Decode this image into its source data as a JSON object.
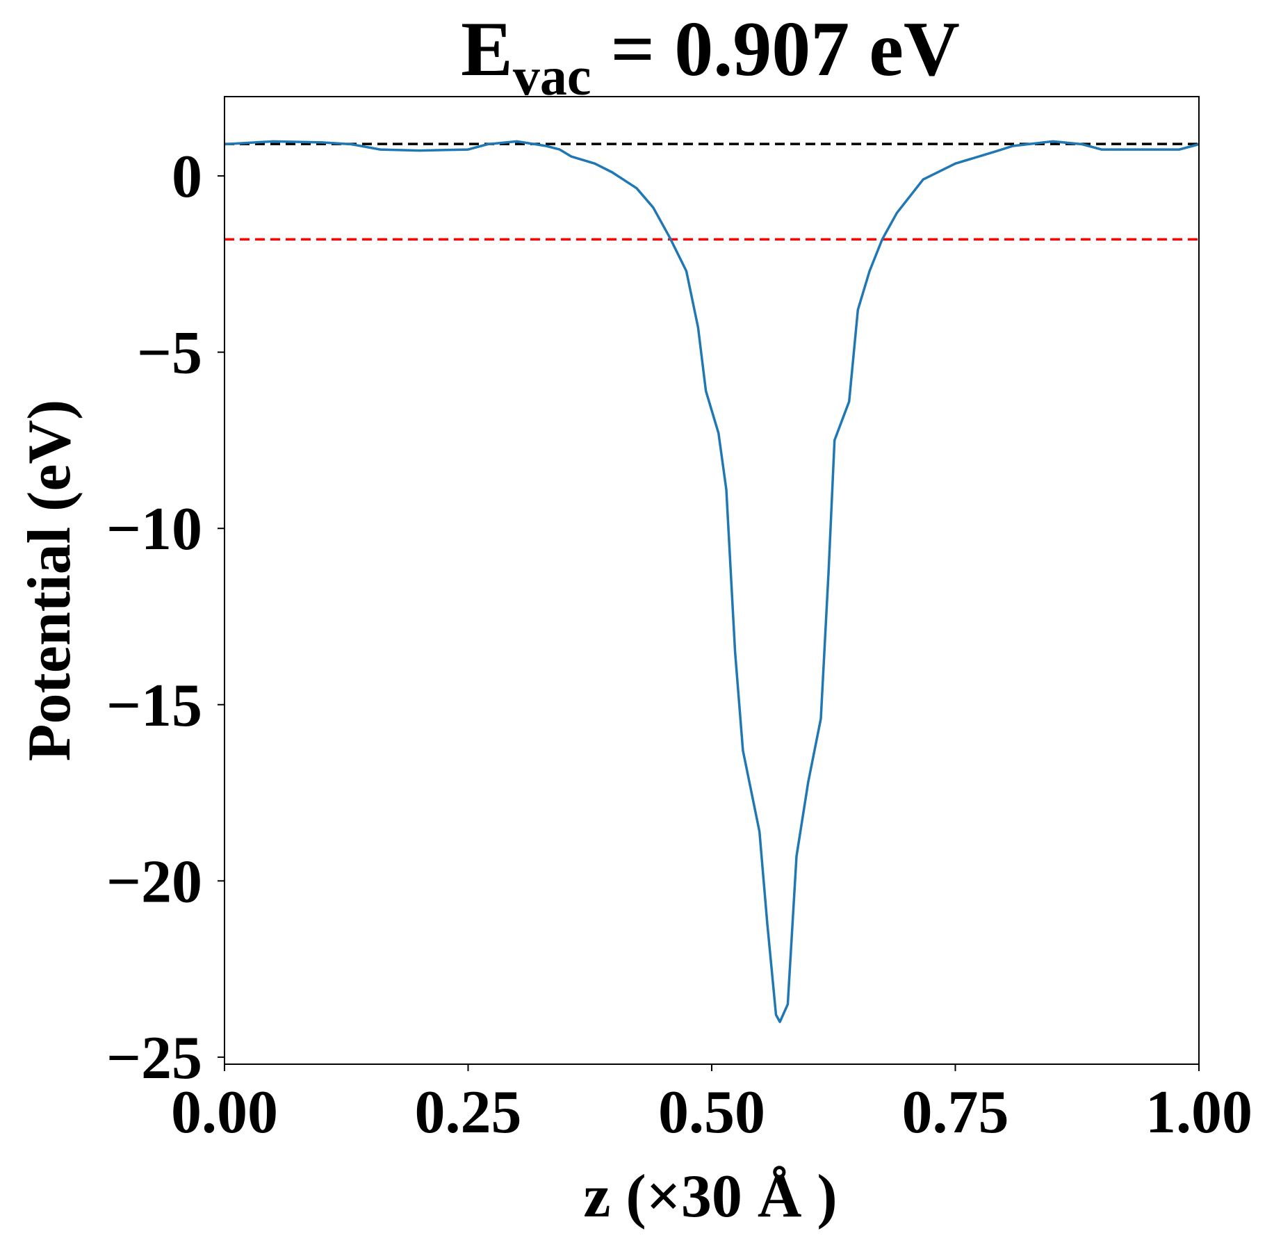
{
  "chart_data": {
    "type": "line",
    "title": {
      "main": "E",
      "sub": "vac",
      "rest": " = 0.907 eV"
    },
    "x_label": "z (×30 Å )",
    "y_label": "Potential (eV)",
    "x": [
      0,
      0.05,
      0.1,
      0.13,
      0.16,
      0.2,
      0.25,
      0.27,
      0.3,
      0.33,
      0.344,
      0.356,
      0.38,
      0.398,
      0.423,
      0.44,
      0.457,
      0.474,
      0.486,
      0.494,
      0.507,
      0.515,
      0.524,
      0.532,
      0.549,
      0.557,
      0.566,
      0.57,
      0.578,
      0.587,
      0.599,
      0.612,
      0.62,
      0.626,
      0.641,
      0.65,
      0.662,
      0.675,
      0.69,
      0.717,
      0.75,
      0.792,
      0.809,
      0.85,
      0.88,
      0.9,
      0.95,
      0.98,
      1.0
    ],
    "series": [
      {
        "color": "#1f77b4",
        "values": [
          0.9,
          0.98,
          0.95,
          0.9,
          0.75,
          0.72,
          0.75,
          0.9,
          0.98,
          0.85,
          0.75,
          0.55,
          0.35,
          0.1,
          -0.35,
          -0.9,
          -1.75,
          -2.7,
          -4.3,
          -6.1,
          -7.3,
          -8.9,
          -13.5,
          -16.3,
          -18.6,
          -21.2,
          -23.8,
          -24.0,
          -23.5,
          -19.3,
          -17.2,
          -15.4,
          -11.2,
          -7.5,
          -6.4,
          -3.8,
          -2.7,
          -1.8,
          -1.05,
          -0.1,
          0.35,
          0.7,
          0.85,
          0.98,
          0.9,
          0.75,
          0.75,
          0.75,
          0.9
        ]
      }
    ],
    "hlines": [
      {
        "value": 0.907,
        "color": "#000000"
      },
      {
        "value": -1.8,
        "color": "#ff0000"
      }
    ],
    "xlim": [
      0,
      1
    ],
    "ylim": [
      -25.2,
      2.25
    ],
    "xticks": [
      {
        "value": 0,
        "label": "0.00"
      },
      {
        "value": 0.25,
        "label": "0.25"
      },
      {
        "value": 0.5,
        "label": "0.50"
      },
      {
        "value": 0.75,
        "label": "0.75"
      },
      {
        "value": 1,
        "label": "1.00"
      }
    ],
    "yticks": [
      0,
      {
        "value": -5,
        "label": "−5"
      },
      {
        "value": -10,
        "label": "−10"
      },
      {
        "value": -15,
        "label": "−15"
      },
      {
        "value": -20,
        "label": "−20"
      },
      {
        "value": -25,
        "label": "−25"
      }
    ]
  }
}
